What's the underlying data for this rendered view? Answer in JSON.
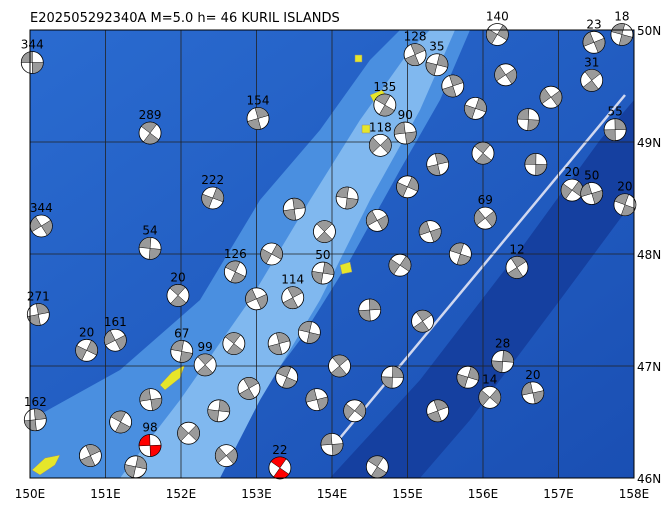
{
  "header": {
    "title": "E202505292340A M=5.0 h= 46 KURIL ISLANDS"
  },
  "map": {
    "lon_labels": [
      "150E",
      "151E",
      "152E",
      "153E",
      "154E",
      "155E",
      "156E",
      "157E",
      "158E"
    ],
    "lat_labels": [
      "50N",
      "49N",
      "48N",
      "47N",
      "46N"
    ],
    "lon_range": [
      150,
      158
    ],
    "lat_range": [
      46,
      50
    ],
    "events": [
      {
        "label": "344",
        "lon": 150.03,
        "lat": 49.71
      },
      {
        "label": "289",
        "lon": 151.59,
        "lat": 49.08
      },
      {
        "label": "154",
        "lon": 153.02,
        "lat": 49.21
      },
      {
        "label": "222",
        "lon": 152.42,
        "lat": 48.5
      },
      {
        "label": "344",
        "lon": 150.15,
        "lat": 48.25
      },
      {
        "label": "54",
        "lon": 151.59,
        "lat": 48.05
      },
      {
        "label": "20",
        "lon": 151.96,
        "lat": 47.63
      },
      {
        "label": "271",
        "lon": 150.11,
        "lat": 47.46
      },
      {
        "label": "20",
        "lon": 150.75,
        "lat": 47.14
      },
      {
        "label": "161",
        "lon": 151.13,
        "lat": 47.23
      },
      {
        "label": "67",
        "lon": 152.01,
        "lat": 47.13
      },
      {
        "label": "99",
        "lon": 152.32,
        "lat": 47.01
      },
      {
        "label": "162",
        "lon": 150.07,
        "lat": 46.52
      },
      {
        "label": "140",
        "lon": 156.19,
        "lat": 49.96
      },
      {
        "label": "23",
        "lon": 157.47,
        "lat": 49.89
      },
      {
        "label": "18",
        "lon": 157.84,
        "lat": 49.96
      },
      {
        "label": "31",
        "lon": 157.44,
        "lat": 49.55
      },
      {
        "label": "55",
        "lon": 157.75,
        "lat": 49.11
      },
      {
        "label": "20",
        "lon": 157.18,
        "lat": 48.57
      },
      {
        "label": "50",
        "lon": 157.44,
        "lat": 48.54
      },
      {
        "label": "20",
        "lon": 157.88,
        "lat": 48.44
      },
      {
        "label": "12",
        "lon": 156.45,
        "lat": 47.88
      },
      {
        "label": "28",
        "lon": 156.26,
        "lat": 47.04
      },
      {
        "label": "14",
        "lon": 156.09,
        "lat": 46.72
      },
      {
        "label": "20",
        "lon": 156.66,
        "lat": 46.76
      },
      {
        "label": "126",
        "lon": 152.72,
        "lat": 47.84
      },
      {
        "label": "114",
        "lon": 153.48,
        "lat": 47.61
      },
      {
        "label": "50",
        "lon": 153.88,
        "lat": 47.83
      },
      {
        "label": "118",
        "lon": 154.64,
        "lat": 48.97
      },
      {
        "label": "90",
        "lon": 154.97,
        "lat": 49.08
      },
      {
        "label": "135",
        "lon": 154.7,
        "lat": 49.33
      },
      {
        "label": "128",
        "lon": 155.1,
        "lat": 49.78
      },
      {
        "label": "35",
        "lon": 155.39,
        "lat": 49.69
      },
      {
        "label": "69",
        "lon": 156.03,
        "lat": 48.32
      },
      {
        "label": "98",
        "lon": 151.59,
        "lat": 46.29,
        "color": "#ff0000"
      },
      {
        "label": "22",
        "lon": 153.31,
        "lat": 46.09,
        "color": "#ff0000"
      },
      {
        "lon": 155.6,
        "lat": 49.5
      },
      {
        "lon": 155.9,
        "lat": 49.3
      },
      {
        "lon": 156.3,
        "lat": 49.6
      },
      {
        "lon": 156.6,
        "lat": 49.2
      },
      {
        "lon": 156.0,
        "lat": 48.9
      },
      {
        "lon": 155.4,
        "lat": 48.8
      },
      {
        "lon": 155.0,
        "lat": 48.6
      },
      {
        "lon": 154.6,
        "lat": 48.3
      },
      {
        "lon": 154.2,
        "lat": 48.5
      },
      {
        "lon": 153.9,
        "lat": 48.2
      },
      {
        "lon": 153.5,
        "lat": 48.4
      },
      {
        "lon": 153.2,
        "lat": 48.0
      },
      {
        "lon": 153.0,
        "lat": 47.6
      },
      {
        "lon": 153.7,
        "lat": 47.3
      },
      {
        "lon": 154.1,
        "lat": 47.0
      },
      {
        "lon": 154.5,
        "lat": 47.5
      },
      {
        "lon": 154.9,
        "lat": 47.9
      },
      {
        "lon": 155.3,
        "lat": 48.2
      },
      {
        "lon": 155.7,
        "lat": 48.0
      },
      {
        "lon": 155.2,
        "lat": 47.4
      },
      {
        "lon": 154.8,
        "lat": 46.9
      },
      {
        "lon": 154.3,
        "lat": 46.6
      },
      {
        "lon": 153.8,
        "lat": 46.7
      },
      {
        "lon": 153.4,
        "lat": 46.9
      },
      {
        "lon": 152.9,
        "lat": 46.8
      },
      {
        "lon": 152.5,
        "lat": 46.6
      },
      {
        "lon": 152.1,
        "lat": 46.4
      },
      {
        "lon": 151.6,
        "lat": 46.7
      },
      {
        "lon": 151.2,
        "lat": 46.5
      },
      {
        "lon": 150.8,
        "lat": 46.2
      },
      {
        "lon": 151.4,
        "lat": 46.1
      },
      {
        "lon": 152.6,
        "lat": 46.2
      },
      {
        "lon": 154.0,
        "lat": 46.3
      },
      {
        "lon": 154.6,
        "lat": 46.1
      },
      {
        "lon": 155.4,
        "lat": 46.6
      },
      {
        "lon": 155.8,
        "lat": 46.9
      },
      {
        "lon": 156.9,
        "lat": 49.4
      },
      {
        "lon": 156.7,
        "lat": 48.8
      },
      {
        "lon": 152.7,
        "lat": 47.2
      },
      {
        "lon": 153.3,
        "lat": 47.2
      }
    ]
  }
}
